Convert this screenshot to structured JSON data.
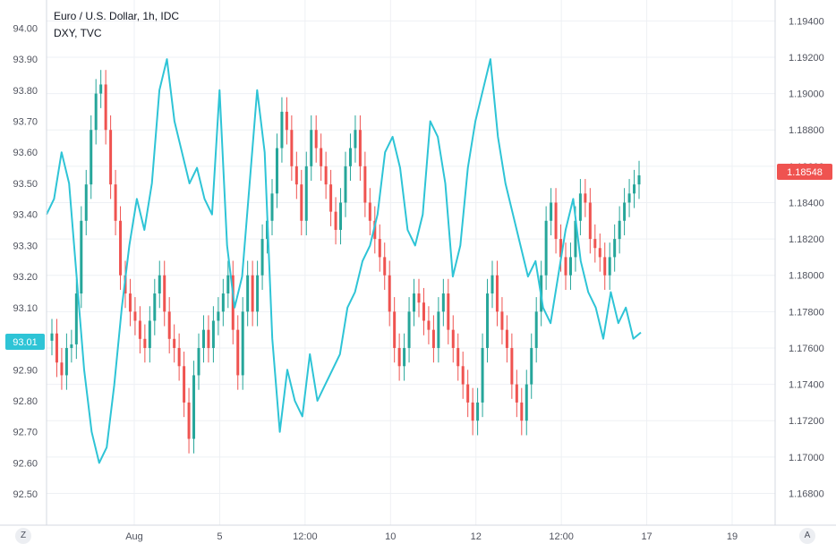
{
  "legend": {
    "main_title": "Euro / U.S. Dollar, 1h, IDC",
    "compare_title": "DXY, TVC"
  },
  "colors": {
    "up": "#26a69a",
    "down": "#ef5350",
    "dxy_line": "#2ec4d6",
    "eur_badge": "#ef5350",
    "dxy_badge": "#2ec4d6",
    "grid": "#eef0f4",
    "axis_text": "#50535e"
  },
  "buttons": {
    "left_corner": "Z",
    "right_corner": "A"
  },
  "chart_data": {
    "type": "line",
    "subtype": "candlestick with comparison line",
    "instrument": "Euro / U.S. Dollar",
    "interval": "1h",
    "source": "IDC",
    "comparison": "DXY, TVC",
    "x_ticks": [
      "Aug",
      "5",
      "12:00",
      "10",
      "12",
      "12:00",
      "17",
      "19"
    ],
    "left_axis": {
      "ylim": [
        92.44,
        94.05
      ],
      "ticks": [
        "94.00",
        "93.90",
        "93.80",
        "93.70",
        "93.60",
        "93.50",
        "93.40",
        "93.30",
        "93.20",
        "93.10",
        "93.00",
        "92.90",
        "92.80",
        "92.70",
        "92.60",
        "92.50"
      ],
      "current": "93.01"
    },
    "right_axis": {
      "ylim": [
        1.16694,
        1.19446
      ],
      "ticks": [
        "1.19400",
        "1.19200",
        "1.19000",
        "1.18800",
        "1.18600",
        "1.18400",
        "1.18200",
        "1.18000",
        "1.17800",
        "1.17600",
        "1.17400",
        "1.17200",
        "1.17000",
        "1.16800"
      ],
      "current": "1.18548"
    },
    "eurusd_close": [
      1.1768,
      1.1752,
      1.1745,
      1.176,
      1.1762,
      1.179,
      1.183,
      1.185,
      1.188,
      1.19,
      1.1905,
      1.188,
      1.185,
      1.183,
      1.18,
      1.179,
      1.178,
      1.1775,
      1.1765,
      1.176,
      1.1775,
      1.179,
      1.18,
      1.178,
      1.1765,
      1.176,
      1.175,
      1.173,
      1.171,
      1.1745,
      1.176,
      1.177,
      1.176,
      1.1775,
      1.178,
      1.179,
      1.18,
      1.177,
      1.1745,
      1.178,
      1.18,
      1.178,
      1.18,
      1.182,
      1.183,
      1.1845,
      1.187,
      1.189,
      1.188,
      1.186,
      1.185,
      1.183,
      1.186,
      1.188,
      1.187,
      1.186,
      1.185,
      1.1835,
      1.1825,
      1.184,
      1.186,
      1.187,
      1.188,
      1.186,
      1.184,
      1.183,
      1.182,
      1.181,
      1.18,
      1.178,
      1.176,
      1.175,
      1.176,
      1.178,
      1.179,
      1.1785,
      1.1775,
      1.177,
      1.176,
      1.178,
      1.179,
      1.177,
      1.176,
      1.175,
      1.174,
      1.173,
      1.172,
      1.173,
      1.176,
      1.179,
      1.18,
      1.178,
      1.177,
      1.176,
      1.174,
      1.173,
      1.172,
      1.174,
      1.176,
      1.178,
      1.18,
      1.183,
      1.184,
      1.182,
      1.181,
      1.18,
      1.181,
      1.183,
      1.1845,
      1.184,
      1.182,
      1.1815,
      1.181,
      1.18,
      1.181,
      1.182,
      1.183,
      1.184,
      1.1845,
      1.185,
      1.1855
    ],
    "dxy_line": [
      93.4,
      93.45,
      93.6,
      93.5,
      93.2,
      92.9,
      92.7,
      92.6,
      92.65,
      92.85,
      93.1,
      93.3,
      93.45,
      93.35,
      93.5,
      93.8,
      93.9,
      93.7,
      93.6,
      93.5,
      93.55,
      93.45,
      93.4,
      93.8,
      93.3,
      93.1,
      93.2,
      93.5,
      93.8,
      93.6,
      93.0,
      92.7,
      92.9,
      92.8,
      92.75,
      92.95,
      92.8,
      92.85,
      92.9,
      92.95,
      93.1,
      93.15,
      93.25,
      93.3,
      93.4,
      93.6,
      93.65,
      93.55,
      93.35,
      93.3,
      93.4,
      93.7,
      93.65,
      93.5,
      93.2,
      93.3,
      93.55,
      93.7,
      93.8,
      93.9,
      93.65,
      93.5,
      93.4,
      93.3,
      93.2,
      93.25,
      93.1,
      93.05,
      93.2,
      93.35,
      93.45,
      93.25,
      93.15,
      93.1,
      93.0,
      93.15,
      93.05,
      93.1,
      93.0,
      93.02
    ]
  }
}
